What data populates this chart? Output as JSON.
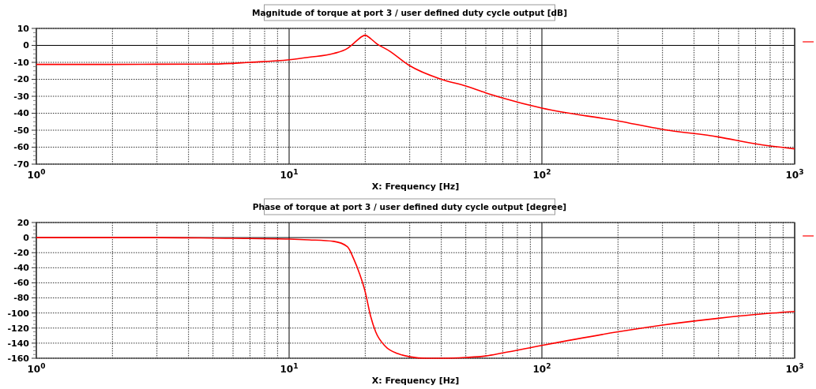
{
  "chart_data": [
    {
      "type": "line",
      "title": "Magnitude of torque at port 3 / user defined duty cycle output [dB]",
      "xlabel": "X: Frequency [Hz]",
      "log": "x",
      "grid": true,
      "xlim": [
        1,
        1000
      ],
      "ylim": [
        -70,
        10
      ],
      "xticks": [
        {
          "value": 1,
          "label": "10$^{0}$"
        },
        {
          "value": 2,
          "label": null
        },
        {
          "value": 3,
          "label": null
        },
        {
          "value": 4,
          "label": null
        },
        {
          "value": 5,
          "label": null
        },
        {
          "value": 6,
          "label": null
        },
        {
          "value": 7,
          "label": null
        },
        {
          "value": 8,
          "label": null
        },
        {
          "value": 9,
          "label": null
        },
        {
          "value": 10,
          "label": "10$^{1}$"
        },
        {
          "value": 20,
          "label": null
        },
        {
          "value": 30,
          "label": null
        },
        {
          "value": 40,
          "label": null
        },
        {
          "value": 50,
          "label": null
        },
        {
          "value": 60,
          "label": null
        },
        {
          "value": 70,
          "label": null
        },
        {
          "value": 80,
          "label": null
        },
        {
          "value": 90,
          "label": null
        },
        {
          "value": 100,
          "label": "10$^{2}$"
        },
        {
          "value": 200,
          "label": null
        },
        {
          "value": 300,
          "label": null
        },
        {
          "value": 400,
          "label": null
        },
        {
          "value": 500,
          "label": null
        },
        {
          "value": 600,
          "label": null
        },
        {
          "value": 700,
          "label": null
        },
        {
          "value": 800,
          "label": null
        },
        {
          "value": 900,
          "label": null
        },
        {
          "value": 1000,
          "label": "10$^{3}$"
        }
      ],
      "yticks": [
        -70,
        -60,
        -50,
        -40,
        -30,
        -20,
        -10,
        0,
        10
      ],
      "x": [
        1,
        2,
        3,
        5,
        7,
        10,
        12,
        15,
        17,
        18.5,
        19.3,
        20,
        21,
        22,
        25,
        30,
        40,
        50,
        60,
        70,
        100,
        200,
        300,
        500,
        700,
        1000
      ],
      "series": [
        {
          "color": "#ff0000",
          "values": [
            -11.2,
            -11.2,
            -11.1,
            -11,
            -10,
            -8.5,
            -7,
            -4.8,
            -1.8,
            2.7,
            5,
            6,
            4,
            1.5,
            -3.4,
            -12,
            -20,
            -24,
            -28,
            -31,
            -37,
            -44.5,
            -49.5,
            -54,
            -58,
            -61
          ]
        }
      ]
    },
    {
      "type": "line",
      "title": "Phase of torque at port 3 / user defined duty cycle output [degree]",
      "xlabel": "X: Frequency [Hz]",
      "log": "x",
      "grid": true,
      "xlim": [
        1,
        1000
      ],
      "ylim": [
        -160,
        20
      ],
      "xticks": [
        {
          "value": 1,
          "label": "10$^{0}$"
        },
        {
          "value": 2,
          "label": null
        },
        {
          "value": 3,
          "label": null
        },
        {
          "value": 4,
          "label": null
        },
        {
          "value": 5,
          "label": null
        },
        {
          "value": 6,
          "label": null
        },
        {
          "value": 7,
          "label": null
        },
        {
          "value": 8,
          "label": null
        },
        {
          "value": 9,
          "label": null
        },
        {
          "value": 10,
          "label": "10$^{1}$"
        },
        {
          "value": 20,
          "label": null
        },
        {
          "value": 30,
          "label": null
        },
        {
          "value": 40,
          "label": null
        },
        {
          "value": 50,
          "label": null
        },
        {
          "value": 60,
          "label": null
        },
        {
          "value": 70,
          "label": null
        },
        {
          "value": 80,
          "label": null
        },
        {
          "value": 90,
          "label": null
        },
        {
          "value": 100,
          "label": "10$^{2}$"
        },
        {
          "value": 200,
          "label": null
        },
        {
          "value": 300,
          "label": null
        },
        {
          "value": 400,
          "label": null
        },
        {
          "value": 500,
          "label": null
        },
        {
          "value": 600,
          "label": null
        },
        {
          "value": 700,
          "label": null
        },
        {
          "value": 800,
          "label": null
        },
        {
          "value": 900,
          "label": null
        },
        {
          "value": 1000,
          "label": "10$^{3}$"
        }
      ],
      "yticks": [
        -160,
        -140,
        -120,
        -100,
        -80,
        -60,
        -40,
        -20,
        0,
        20
      ],
      "x": [
        1,
        3,
        6,
        10,
        12,
        15,
        17,
        18,
        19,
        20,
        21,
        22,
        24,
        27,
        30,
        35,
        40,
        50,
        60,
        70,
        100,
        200,
        300,
        500,
        700,
        1000
      ],
      "series": [
        {
          "color": "#ff0000",
          "values": [
            0,
            0,
            -1,
            -2,
            -3,
            -5,
            -12,
            -28,
            -48,
            -72,
            -104,
            -125,
            -144,
            -154,
            -158,
            -160,
            -160,
            -159,
            -157,
            -153,
            -143,
            -125,
            -116,
            -107,
            -102,
            -98
          ]
        }
      ]
    }
  ]
}
